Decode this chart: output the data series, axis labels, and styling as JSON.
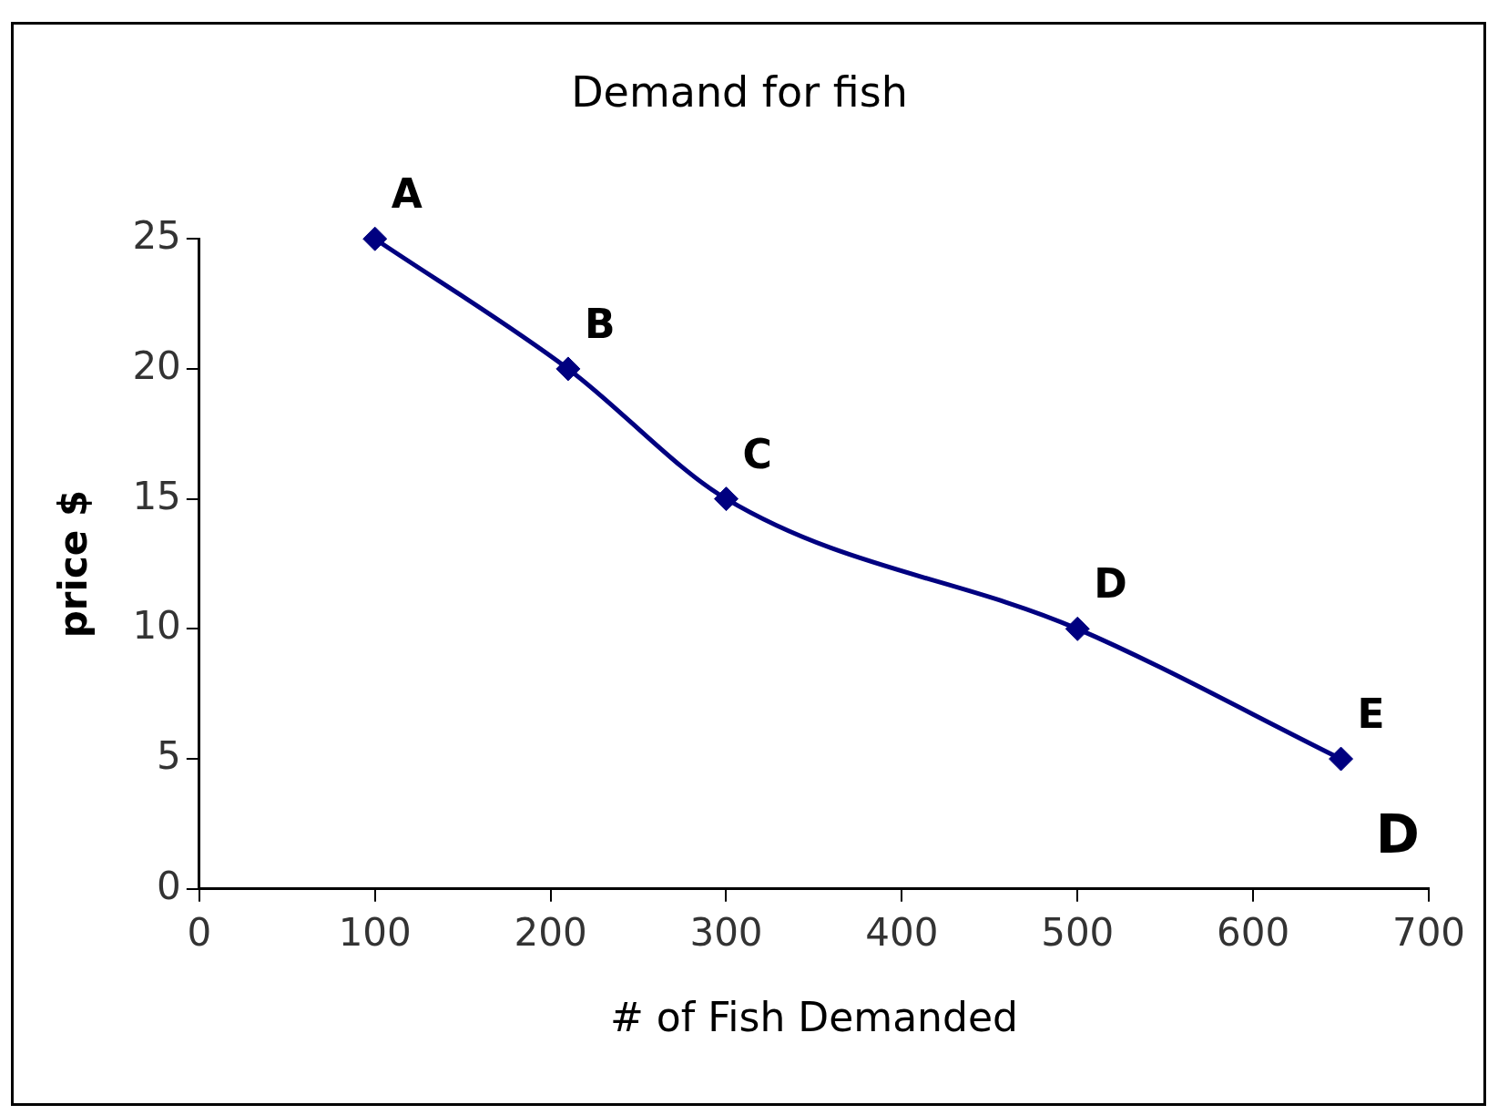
{
  "chart_data": {
    "type": "line",
    "title": "Demand for fish",
    "xlabel": "# of Fish Demanded",
    "ylabel": "price $",
    "x": [
      100,
      210,
      300,
      500,
      650
    ],
    "series": [
      {
        "color": "#000080",
        "values": [
          25,
          20,
          15,
          10,
          5
        ]
      }
    ],
    "xlim": [
      0,
      700
    ],
    "xticks": [
      0,
      100,
      200,
      300,
      400,
      500,
      600,
      700
    ],
    "ylim": [
      0,
      25
    ],
    "yticks": [
      0,
      5,
      10,
      15,
      20,
      25
    ],
    "grid": false,
    "legend": false,
    "marker": "diamond",
    "line_style": "solid",
    "annotations": [
      {
        "text": "A",
        "x": 100,
        "y": 25
      },
      {
        "text": "B",
        "x": 210,
        "y": 20
      },
      {
        "text": "C",
        "x": 300,
        "y": 15
      },
      {
        "text": "D",
        "x": 500,
        "y": 10
      },
      {
        "text": "E",
        "x": 650,
        "y": 5
      },
      "D"
    ]
  }
}
